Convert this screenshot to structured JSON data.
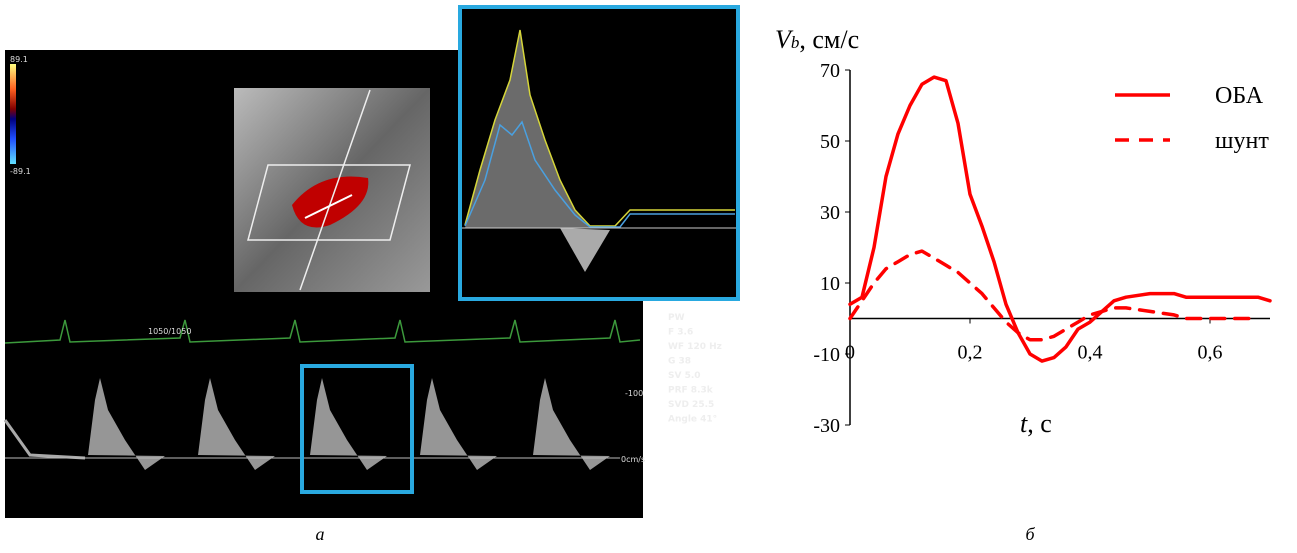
{
  "panel_a": {
    "color_scale": [
      "89.1",
      "-89.1"
    ],
    "ecg_label": "1050/1050",
    "params": [
      "PW",
      "F 3.6",
      "WF 120 Hz",
      "G 38",
      "SV 5.0",
      "PRF 8.3k",
      "SVD 25.5",
      "Angle   41°"
    ],
    "scale_labels": [
      "-100",
      "0cm/s"
    ],
    "caption": "а"
  },
  "panel_b_caption": "б",
  "chart_data": {
    "type": "line",
    "y_label": {
      "symbol": "V",
      "subscript": "b",
      "unit": ", см/с"
    },
    "x_label": {
      "symbol": "t",
      "unit": ", с"
    },
    "x": [
      0,
      0.02,
      0.04,
      0.06,
      0.08,
      0.1,
      0.12,
      0.14,
      0.16,
      0.18,
      0.2,
      0.22,
      0.24,
      0.26,
      0.28,
      0.3,
      0.32,
      0.34,
      0.36,
      0.38,
      0.4,
      0.42,
      0.44,
      0.46,
      0.5,
      0.54,
      0.56,
      0.6,
      0.64,
      0.68,
      0.7
    ],
    "series": [
      {
        "name": "ОБА",
        "color": "#ff0000",
        "dash": false,
        "values": [
          4,
          6,
          20,
          40,
          52,
          60,
          66,
          68,
          67,
          55,
          35,
          26,
          16,
          4,
          -4,
          -10,
          -12,
          -11,
          -8,
          -3,
          -1,
          2,
          5,
          6,
          7,
          7,
          6,
          6,
          6,
          6,
          5
        ]
      },
      {
        "name": "шунт",
        "color": "#ff0000",
        "dash": true,
        "values": [
          0,
          5,
          10,
          14,
          16,
          18,
          19,
          17,
          15,
          13,
          10,
          7,
          3,
          -1,
          -4,
          -6,
          -6,
          -5,
          -3,
          -1,
          1,
          2,
          3,
          3,
          2,
          1,
          0,
          0,
          0,
          0,
          null
        ]
      }
    ],
    "xlim": [
      0,
      0.7
    ],
    "ylim": [
      -30,
      70
    ],
    "xticks": [
      0,
      {
        "value": 0.2,
        "label": "0,2"
      },
      {
        "value": 0.4,
        "label": "0,4"
      },
      {
        "value": 0.6,
        "label": "0,6"
      }
    ],
    "yticks": [
      -30,
      -10,
      10,
      30,
      50,
      70
    ],
    "legend": "upper right"
  }
}
